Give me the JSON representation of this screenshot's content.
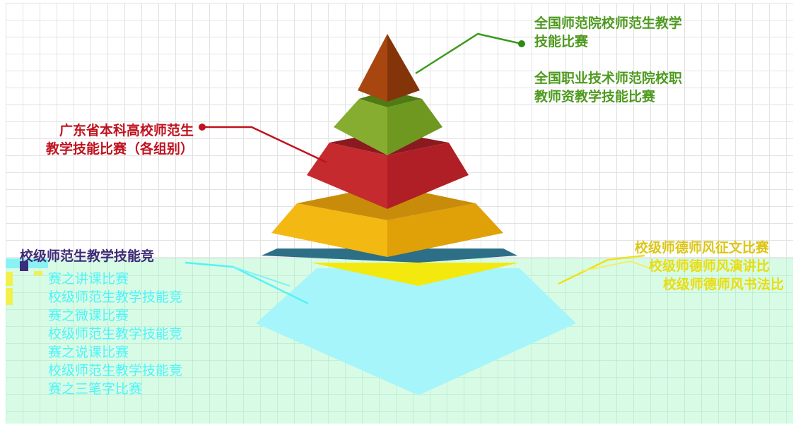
{
  "labels": {
    "national_normal": "全国师范院校师范生教学\n技能比赛",
    "national_vocational": "全国职业技术师范院校职\n教师资教学技能比赛",
    "provincial": "广东省本科高校师范生\n教学技能比赛（各组别）",
    "school_left_title": "校级师范生教学技能竞",
    "school_left_items": [
      "赛之讲课比赛",
      "校级师范生教学技能竞",
      "赛之微课比赛",
      "校级师范生教学技能竞",
      "赛之说课比赛",
      "校级师范生教学技能竞",
      "赛之三笔字比赛"
    ],
    "school_right": [
      "校级师德师风征文比赛",
      "校级师德师风演讲比",
      "校级师德师风书法比"
    ]
  },
  "colors": {
    "tier_top": "#a0420d",
    "tier_2": "#7aa22a",
    "tier_3": "#c0232a",
    "tier_4": "#f2b20e",
    "tier_base_glitch": "#a6f5fb",
    "leader_green": "#3d9a1c",
    "leader_red": "#c0121e",
    "leader_yellow": "#ece21a"
  }
}
